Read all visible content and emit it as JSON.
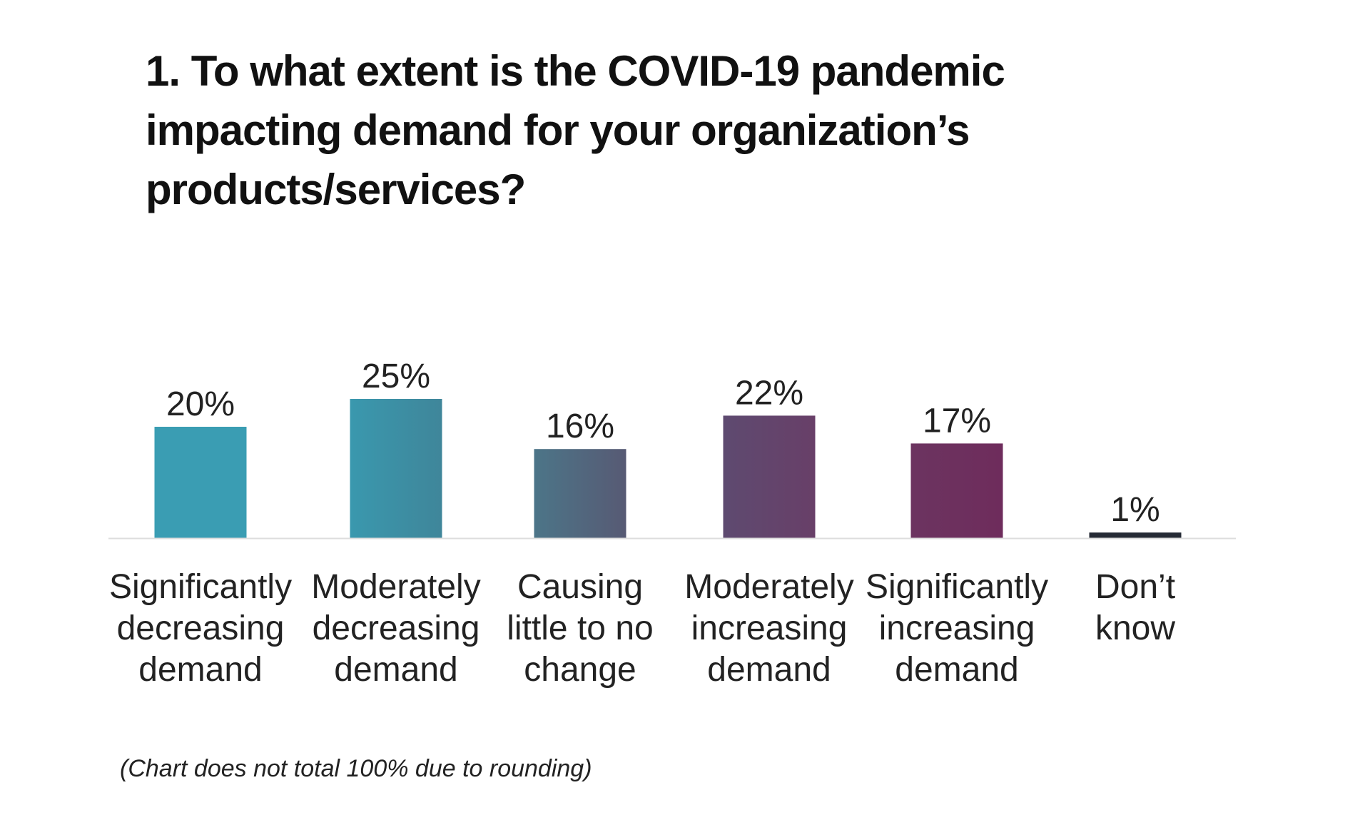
{
  "chart_data": {
    "type": "bar",
    "title": "1. To what extent is the COVID-19 pandemic impacting demand for your organization’s products/services?",
    "categories": [
      [
        "Significantly",
        "decreasing",
        "demand"
      ],
      [
        "Moderately",
        "decreasing",
        "demand"
      ],
      [
        "Causing",
        "little to no",
        "change"
      ],
      [
        "Moderately",
        "increasing",
        "demand"
      ],
      [
        "Significantly",
        "increasing",
        "demand"
      ],
      [
        "Don’t",
        "know"
      ]
    ],
    "values": [
      20,
      25,
      16,
      22,
      17,
      1
    ],
    "value_labels": [
      "20%",
      "25%",
      "16%",
      "22%",
      "17%",
      "1%"
    ],
    "unit": "%",
    "bar_colors": [
      [
        "#3a9db3",
        "#3a9db3"
      ],
      [
        "#3a98ae",
        "#3f869a"
      ],
      [
        "#4c7588",
        "#575a74"
      ],
      [
        "#5e4a70",
        "#683f68"
      ],
      [
        "#6c3460",
        "#6e2c5c"
      ],
      [
        "#252a35",
        "#252a35"
      ]
    ],
    "axis_color": "#dddddd",
    "note": "(Chart does not total 100% due to rounding)",
    "grid": false
  }
}
